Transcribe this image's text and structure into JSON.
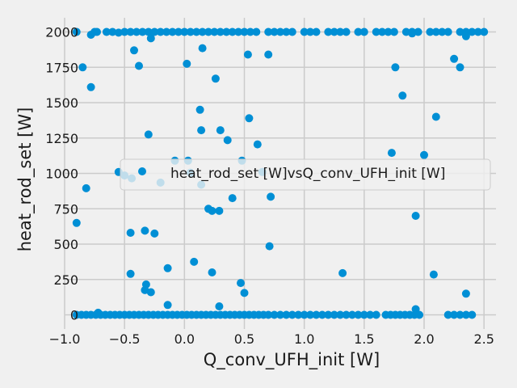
{
  "chart_data": {
    "type": "scatter",
    "xlabel": "Q_conv_UFH_init [W]",
    "ylabel": "heat_rod_set [W]",
    "xlim": [
      -1.0,
      2.6
    ],
    "ylim": [
      -100,
      2100
    ],
    "x_ticks": [
      -1.0,
      -0.5,
      0.0,
      0.5,
      1.0,
      1.5,
      2.0,
      2.5
    ],
    "x_tick_labels": [
      "−1.0",
      "−0.5",
      "0.0",
      "0.5",
      "1.0",
      "1.5",
      "2.0",
      "2.5"
    ],
    "y_ticks": [
      0,
      250,
      500,
      750,
      1000,
      1250,
      1500,
      1750,
      2000
    ],
    "y_tick_labels": [
      "0",
      "250",
      "500",
      "750",
      "1000",
      "1250",
      "1500",
      "1750",
      "2000"
    ],
    "grid": true,
    "legend": {
      "position": "center-right",
      "entries": [
        "heat_rod_set [W]vsQ_conv_UFH_init [W]"
      ]
    },
    "series": [
      {
        "name": "heat_rod_set [W]vsQ_conv_UFH_init [W]",
        "color": "#008fd5",
        "points": [
          [
            -0.9,
            2000
          ],
          [
            -0.78,
            1980
          ],
          [
            -0.75,
            2000
          ],
          [
            -0.73,
            2000
          ],
          [
            -0.65,
            2000
          ],
          [
            -0.6,
            2000
          ],
          [
            -0.55,
            1995
          ],
          [
            -0.5,
            2000
          ],
          [
            -0.45,
            2000
          ],
          [
            -0.4,
            2000
          ],
          [
            -0.35,
            2000
          ],
          [
            -0.3,
            2000
          ],
          [
            -0.25,
            2000
          ],
          [
            -0.2,
            2000
          ],
          [
            -0.15,
            2000
          ],
          [
            -0.1,
            2000
          ],
          [
            -0.05,
            2000
          ],
          [
            0.0,
            2000
          ],
          [
            0.05,
            2000
          ],
          [
            0.1,
            2000
          ],
          [
            0.15,
            2000
          ],
          [
            0.2,
            2000
          ],
          [
            0.25,
            2000
          ],
          [
            0.3,
            2000
          ],
          [
            0.35,
            2000
          ],
          [
            0.4,
            2000
          ],
          [
            0.45,
            2000
          ],
          [
            0.5,
            2000
          ],
          [
            0.55,
            2000
          ],
          [
            0.6,
            2000
          ],
          [
            0.7,
            2000
          ],
          [
            0.75,
            2000
          ],
          [
            0.8,
            2000
          ],
          [
            0.85,
            2000
          ],
          [
            0.9,
            2000
          ],
          [
            1.0,
            2000
          ],
          [
            1.05,
            2000
          ],
          [
            1.1,
            2000
          ],
          [
            1.2,
            2000
          ],
          [
            1.25,
            2000
          ],
          [
            1.3,
            2000
          ],
          [
            1.35,
            2000
          ],
          [
            1.45,
            2000
          ],
          [
            1.5,
            2000
          ],
          [
            1.6,
            2000
          ],
          [
            1.65,
            2000
          ],
          [
            1.7,
            2000
          ],
          [
            1.75,
            2000
          ],
          [
            1.85,
            2000
          ],
          [
            1.9,
            2000
          ],
          [
            1.95,
            2000
          ],
          [
            2.05,
            2000
          ],
          [
            2.1,
            2000
          ],
          [
            2.15,
            2000
          ],
          [
            2.2,
            2000
          ],
          [
            2.3,
            2000
          ],
          [
            2.35,
            2000
          ],
          [
            2.4,
            2000
          ],
          [
            2.45,
            2000
          ],
          [
            2.5,
            2000
          ],
          [
            2.35,
            1970
          ],
          [
            -0.28,
            1955
          ],
          [
            1.9,
            1990
          ],
          [
            -0.42,
            1870
          ],
          [
            0.15,
            1885
          ],
          [
            0.53,
            1840
          ],
          [
            0.7,
            1840
          ],
          [
            2.25,
            1810
          ],
          [
            -0.85,
            1750
          ],
          [
            -0.38,
            1760
          ],
          [
            0.02,
            1775
          ],
          [
            1.76,
            1750
          ],
          [
            2.3,
            1750
          ],
          [
            -0.78,
            1610
          ],
          [
            0.26,
            1670
          ],
          [
            1.82,
            1550
          ],
          [
            0.13,
            1450
          ],
          [
            2.1,
            1400
          ],
          [
            0.54,
            1390
          ],
          [
            0.14,
            1305
          ],
          [
            0.3,
            1305
          ],
          [
            -0.3,
            1275
          ],
          [
            0.36,
            1235
          ],
          [
            0.61,
            1205
          ],
          [
            1.73,
            1145
          ],
          [
            2.0,
            1130
          ],
          [
            -0.08,
            1090
          ],
          [
            0.03,
            1090
          ],
          [
            0.48,
            1090
          ],
          [
            -0.55,
            1010
          ],
          [
            0.05,
            1005
          ],
          [
            0.65,
            1010
          ],
          [
            -0.5,
            985
          ],
          [
            -0.44,
            965
          ],
          [
            -0.2,
            935
          ],
          [
            0.14,
            920
          ],
          [
            -0.82,
            895
          ],
          [
            0.72,
            835
          ],
          [
            0.4,
            825
          ],
          [
            0.2,
            750
          ],
          [
            0.23,
            735
          ],
          [
            0.29,
            735
          ],
          [
            1.93,
            700
          ],
          [
            -0.9,
            650
          ],
          [
            -0.33,
            595
          ],
          [
            -0.45,
            580
          ],
          [
            -0.25,
            575
          ],
          [
            0.71,
            485
          ],
          [
            0.08,
            375
          ],
          [
            -0.14,
            330
          ],
          [
            -0.45,
            290
          ],
          [
            0.23,
            300
          ],
          [
            1.32,
            295
          ],
          [
            2.08,
            285
          ],
          [
            -0.32,
            215
          ],
          [
            0.47,
            225
          ],
          [
            -0.33,
            175
          ],
          [
            -0.28,
            160
          ],
          [
            0.5,
            155
          ],
          [
            2.35,
            150
          ],
          [
            -0.14,
            70
          ],
          [
            0.29,
            60
          ],
          [
            1.93,
            40
          ],
          [
            -0.72,
            15
          ],
          [
            -0.9,
            0
          ],
          [
            -0.86,
            0
          ],
          [
            -0.82,
            0
          ],
          [
            -0.78,
            0
          ],
          [
            -0.74,
            0
          ],
          [
            -0.7,
            0
          ],
          [
            -0.66,
            0
          ],
          [
            -0.62,
            0
          ],
          [
            -0.58,
            0
          ],
          [
            -0.54,
            0
          ],
          [
            -0.5,
            0
          ],
          [
            -0.46,
            0
          ],
          [
            -0.42,
            0
          ],
          [
            -0.38,
            0
          ],
          [
            -0.34,
            0
          ],
          [
            -0.3,
            0
          ],
          [
            -0.26,
            0
          ],
          [
            -0.22,
            0
          ],
          [
            -0.18,
            0
          ],
          [
            -0.14,
            0
          ],
          [
            -0.1,
            0
          ],
          [
            -0.06,
            0
          ],
          [
            -0.02,
            0
          ],
          [
            0.02,
            0
          ],
          [
            0.06,
            0
          ],
          [
            0.1,
            0
          ],
          [
            0.14,
            0
          ],
          [
            0.18,
            0
          ],
          [
            0.22,
            0
          ],
          [
            0.26,
            0
          ],
          [
            0.3,
            0
          ],
          [
            0.34,
            0
          ],
          [
            0.38,
            0
          ],
          [
            0.42,
            0
          ],
          [
            0.46,
            0
          ],
          [
            0.5,
            0
          ],
          [
            0.54,
            0
          ],
          [
            0.58,
            0
          ],
          [
            0.62,
            0
          ],
          [
            0.66,
            0
          ],
          [
            0.7,
            0
          ],
          [
            0.75,
            0
          ],
          [
            0.8,
            0
          ],
          [
            0.85,
            0
          ],
          [
            0.9,
            0
          ],
          [
            0.95,
            0
          ],
          [
            1.0,
            0
          ],
          [
            1.05,
            0
          ],
          [
            1.1,
            0
          ],
          [
            1.15,
            0
          ],
          [
            1.2,
            0
          ],
          [
            1.25,
            0
          ],
          [
            1.3,
            0
          ],
          [
            1.35,
            0
          ],
          [
            1.4,
            0
          ],
          [
            1.45,
            0
          ],
          [
            1.5,
            0
          ],
          [
            1.55,
            0
          ],
          [
            1.6,
            0
          ],
          [
            1.68,
            0
          ],
          [
            1.72,
            0
          ],
          [
            1.76,
            0
          ],
          [
            1.8,
            0
          ],
          [
            1.84,
            0
          ],
          [
            1.88,
            0
          ],
          [
            1.92,
            0
          ],
          [
            1.96,
            0
          ],
          [
            2.2,
            0
          ],
          [
            2.25,
            0
          ],
          [
            2.3,
            0
          ],
          [
            2.35,
            0
          ],
          [
            2.4,
            0
          ]
        ]
      }
    ]
  }
}
